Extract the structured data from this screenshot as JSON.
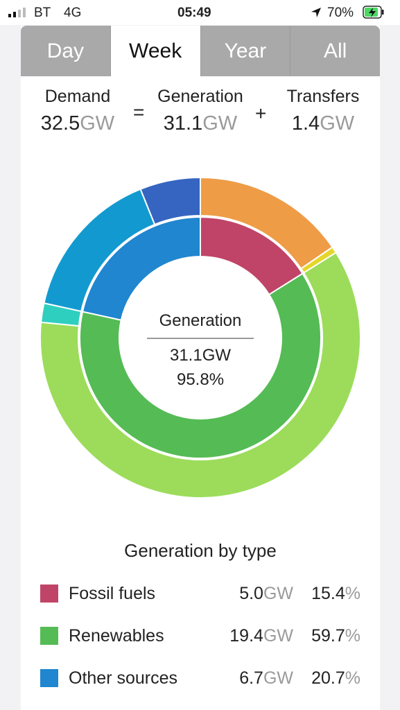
{
  "status_bar": {
    "carrier": "BT",
    "network": "4G",
    "time": "05:49",
    "battery": "70%"
  },
  "tabs": {
    "items": [
      "Day",
      "Week",
      "Year",
      "All"
    ],
    "active": 1
  },
  "summary": {
    "items": [
      {
        "label": "Demand",
        "value": "32.5"
      },
      {
        "label": "Generation",
        "value": "31.1"
      },
      {
        "label": "Transfers",
        "value": "1.4"
      }
    ],
    "operators": [
      "=",
      "+"
    ],
    "unit": "GW"
  },
  "chart_data": {
    "type": "donut",
    "unit": "GW",
    "percent_sign": "%",
    "center": {
      "label": "Generation",
      "value": 31.1,
      "percent": 95.8
    },
    "series": [
      {
        "name": "Fossil fuels",
        "color": "#c04468",
        "value": 5.0,
        "value_label": "5.0",
        "percent": 15.4
      },
      {
        "name": "Renewables",
        "color": "#55bb55",
        "value": 19.4,
        "value_label": "19.4",
        "percent": 59.7
      },
      {
        "name": "Other sources",
        "color": "#1f86cf",
        "value": 6.7,
        "value_label": "6.7",
        "percent": 20.7
      }
    ],
    "outer": [
      {
        "color": "#ee9c46",
        "value": 4.8
      },
      {
        "color": "#e6d62a",
        "value": 0.2
      },
      {
        "color": "#9cdc5a",
        "value": 18.8
      },
      {
        "color": "#2fcfbf",
        "value": 0.6
      },
      {
        "color": "#129ad0",
        "value": 4.8
      },
      {
        "color": "#3565c0",
        "value": 1.9
      }
    ],
    "legend_title": "Generation by type"
  }
}
